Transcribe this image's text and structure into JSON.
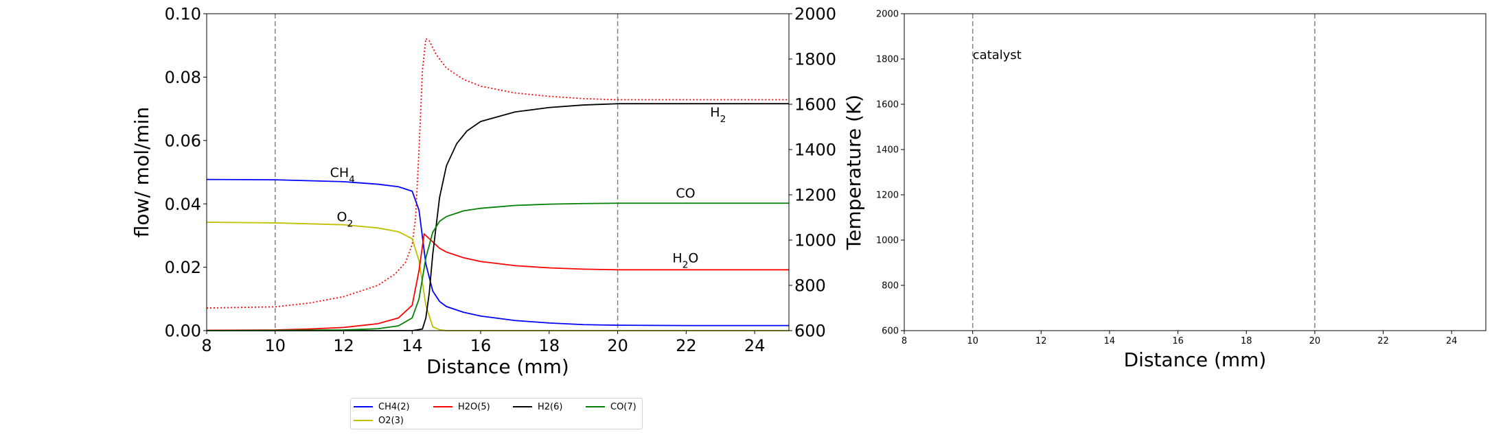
{
  "chart_data": [
    {
      "type": "line",
      "xlabel": "Distance (mm)",
      "ylabel": "flow/ mol/min",
      "y2label": "Temperature (K)",
      "xlim": [
        8,
        25
      ],
      "ylim": [
        0,
        0.1
      ],
      "y2lim": [
        600,
        2000
      ],
      "x_ticks": [
        "8",
        "10",
        "12",
        "14",
        "16",
        "18",
        "20",
        "22",
        "24"
      ],
      "y_ticks": [
        "0.00",
        "0.02",
        "0.04",
        "0.06",
        "0.08",
        "0.10"
      ],
      "y2_ticks": [
        "600",
        "800",
        "1000",
        "1200",
        "1400",
        "1600",
        "1800",
        "2000"
      ],
      "vlines": [
        10,
        20
      ],
      "grid": false,
      "series": [
        {
          "name": "CH4(2)",
          "color": "#0000ff",
          "x": [
            8,
            10,
            12,
            13,
            13.6,
            14.0,
            14.2,
            14.4,
            14.6,
            14.8,
            15.0,
            15.5,
            16,
            17,
            18,
            19,
            20,
            22,
            25
          ],
          "y": [
            0.0477,
            0.0476,
            0.047,
            0.0462,
            0.0454,
            0.044,
            0.038,
            0.021,
            0.0125,
            0.0092,
            0.0076,
            0.0058,
            0.0046,
            0.0032,
            0.0024,
            0.0019,
            0.0017,
            0.0016,
            0.0016
          ]
        },
        {
          "name": "O2(3)",
          "color": "#bfbf00",
          "x": [
            8,
            10,
            12,
            13,
            13.6,
            14.0,
            14.2,
            14.4,
            14.6,
            14.8,
            15.0,
            25
          ],
          "y": [
            0.0342,
            0.034,
            0.0334,
            0.0324,
            0.0312,
            0.029,
            0.022,
            0.008,
            0.0012,
            0.0003,
            0.0,
            0.0
          ]
        },
        {
          "name": "H2O(5)",
          "color": "#ff0000",
          "x": [
            8,
            10,
            11,
            12,
            13,
            13.6,
            14.0,
            14.2,
            14.35,
            14.5,
            14.8,
            15.0,
            15.5,
            16,
            17,
            18,
            19,
            20,
            22,
            25
          ],
          "y": [
            0.0001,
            0.0002,
            0.0005,
            0.001,
            0.0022,
            0.004,
            0.008,
            0.019,
            0.0305,
            0.029,
            0.026,
            0.0248,
            0.023,
            0.0218,
            0.0205,
            0.0198,
            0.0194,
            0.0192,
            0.0192,
            0.0192
          ]
        },
        {
          "name": "H2(6)",
          "color": "#000000",
          "x": [
            8,
            14.0,
            14.3,
            14.4,
            14.5,
            14.6,
            14.8,
            15.0,
            15.3,
            15.6,
            16,
            17,
            18,
            19,
            20,
            25
          ],
          "y": [
            0.0,
            0.0,
            0.0005,
            0.004,
            0.012,
            0.024,
            0.042,
            0.052,
            0.059,
            0.063,
            0.066,
            0.069,
            0.0704,
            0.0712,
            0.0716,
            0.0716
          ]
        },
        {
          "name": "CO(7)",
          "color": "#008000",
          "x": [
            8,
            12,
            13,
            13.6,
            14.0,
            14.2,
            14.4,
            14.6,
            14.8,
            15.0,
            15.5,
            16,
            17,
            18,
            19,
            20,
            25
          ],
          "y": [
            0.0,
            0.0002,
            0.0006,
            0.0015,
            0.004,
            0.01,
            0.023,
            0.031,
            0.0345,
            0.036,
            0.0378,
            0.0386,
            0.0395,
            0.0399,
            0.0401,
            0.0402,
            0.0402
          ]
        }
      ],
      "temperature_series": {
        "color": "#ff0000",
        "style": "dotted",
        "axis": "right",
        "x": [
          8,
          10,
          11,
          12,
          13,
          13.5,
          13.8,
          14.0,
          14.1,
          14.2,
          14.3,
          14.4,
          14.5,
          14.7,
          15.0,
          15.5,
          16,
          17,
          18,
          19,
          20,
          22,
          25
        ],
        "y": [
          700,
          705,
          722,
          750,
          800,
          850,
          900,
          980,
          1100,
          1400,
          1750,
          1890,
          1880,
          1820,
          1760,
          1710,
          1680,
          1650,
          1635,
          1625,
          1620,
          1620,
          1620
        ]
      },
      "annotations": [
        {
          "text": "CH",
          "sub": "4",
          "x": 11.6,
          "y": 0.0485,
          "color": "#0000ff"
        },
        {
          "text": "O",
          "sub": "2",
          "x": 11.8,
          "y": 0.0345,
          "color": "#bfbf00"
        },
        {
          "text": "H",
          "sub": "2",
          "x": 22.7,
          "y": 0.0675,
          "color": "#000000"
        },
        {
          "text": "CO",
          "x": 21.7,
          "y": 0.042,
          "color": "#008000"
        },
        {
          "text": "H",
          "sub": "2",
          "tail": "O",
          "x": 21.6,
          "y": 0.0215,
          "color": "#ff0000"
        }
      ],
      "legend": {
        "placement": "bottom-center",
        "entries": [
          {
            "label": "CH4(2)",
            "color": "#0000ff"
          },
          {
            "label": "H2O(5)",
            "color": "#ff0000"
          },
          {
            "label": "H2(6)",
            "color": "#000000"
          },
          {
            "label": "CO(7)",
            "color": "#008000"
          },
          {
            "label": "O2(3)",
            "color": "#bfbf00"
          }
        ]
      }
    },
    {
      "type": "line",
      "xlabel": "Distance (mm)",
      "xlim": [
        8,
        25
      ],
      "ylim": [
        600,
        2000
      ],
      "x_ticks": [
        "8",
        "10",
        "12",
        "14",
        "16",
        "18",
        "20",
        "22",
        "24"
      ],
      "y_ticks": [
        "600",
        "800",
        "1000",
        "1200",
        "1400",
        "1600",
        "1800",
        "2000"
      ],
      "vlines": [
        10,
        20
      ],
      "grid": false,
      "series": [],
      "annotations": [
        {
          "text": "catalyst",
          "x": 10,
          "y": 1800,
          "color": "#000000"
        }
      ]
    }
  ]
}
